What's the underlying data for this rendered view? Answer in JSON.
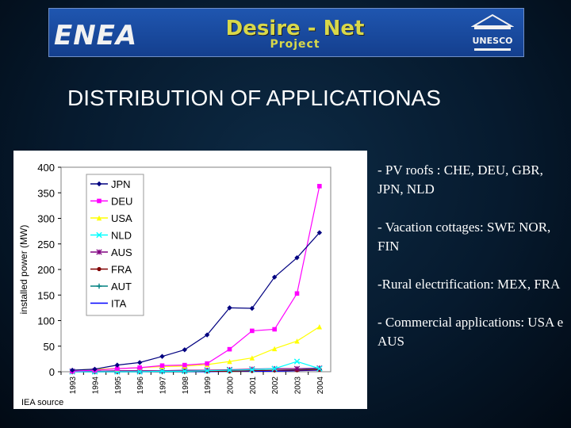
{
  "banner": {
    "left_logo": "ENEA",
    "project_title": "Desire - Net",
    "project_subtitle": "Project",
    "right_logo": "UNESCO"
  },
  "slide_title": "DISTRIBUTION OF APPLICATIONAS",
  "bullets": [
    "- PV roofs : CHE, DEU, GBR, JPN, NLD",
    "- Vacation cottages: SWE NOR, FIN",
    "-Rural electrification: MEX, FRA",
    "- Commercial applications: USA e AUS"
  ],
  "chart_data": {
    "type": "line",
    "title": "",
    "xlabel": "",
    "ylabel": "installed power (MW)",
    "source_note": "IEA source",
    "ylim": [
      0,
      400
    ],
    "yticks": [
      0,
      50,
      100,
      150,
      200,
      250,
      300,
      350,
      400
    ],
    "grid": false,
    "legend_position": "top-left",
    "x": [
      "1993",
      "1994",
      "1995",
      "1996",
      "1997",
      "1998",
      "1999",
      "2000",
      "2001",
      "2002",
      "2003",
      "2004"
    ],
    "series": [
      {
        "name": "JPN",
        "color": "#000080",
        "marker": "diamond",
        "values": [
          3,
          5,
          13,
          18,
          30,
          43,
          72,
          125,
          124,
          185,
          223,
          272
        ]
      },
      {
        "name": "DEU",
        "color": "#ff00ff",
        "marker": "square",
        "values": [
          1,
          3,
          6,
          8,
          12,
          13,
          16,
          44,
          80,
          83,
          153,
          363
        ]
      },
      {
        "name": "USA",
        "color": "#ffff00",
        "marker": "triangle",
        "values": [
          3,
          5,
          6,
          8,
          10,
          11,
          14,
          20,
          27,
          45,
          60,
          88
        ]
      },
      {
        "name": "NLD",
        "color": "#00ffff",
        "marker": "x",
        "values": [
          0,
          0,
          0,
          0,
          1,
          1,
          2,
          3,
          4,
          6,
          20,
          6
        ]
      },
      {
        "name": "AUS",
        "color": "#800080",
        "marker": "star",
        "values": [
          1,
          1,
          2,
          2,
          2,
          3,
          3,
          4,
          5,
          6,
          6,
          7
        ]
      },
      {
        "name": "FRA",
        "color": "#800000",
        "marker": "circle",
        "values": [
          0,
          0,
          0,
          0,
          1,
          1,
          1,
          1,
          2,
          3,
          3,
          4
        ]
      },
      {
        "name": "AUT",
        "color": "#008080",
        "marker": "plus",
        "values": [
          0,
          0,
          0,
          0,
          0,
          0,
          1,
          1,
          2,
          3,
          4,
          5
        ]
      },
      {
        "name": "ITA",
        "color": "#0000ff",
        "marker": "none",
        "values": [
          0,
          0,
          0,
          0,
          0,
          0,
          0,
          1,
          1,
          1,
          2,
          3
        ]
      }
    ]
  }
}
